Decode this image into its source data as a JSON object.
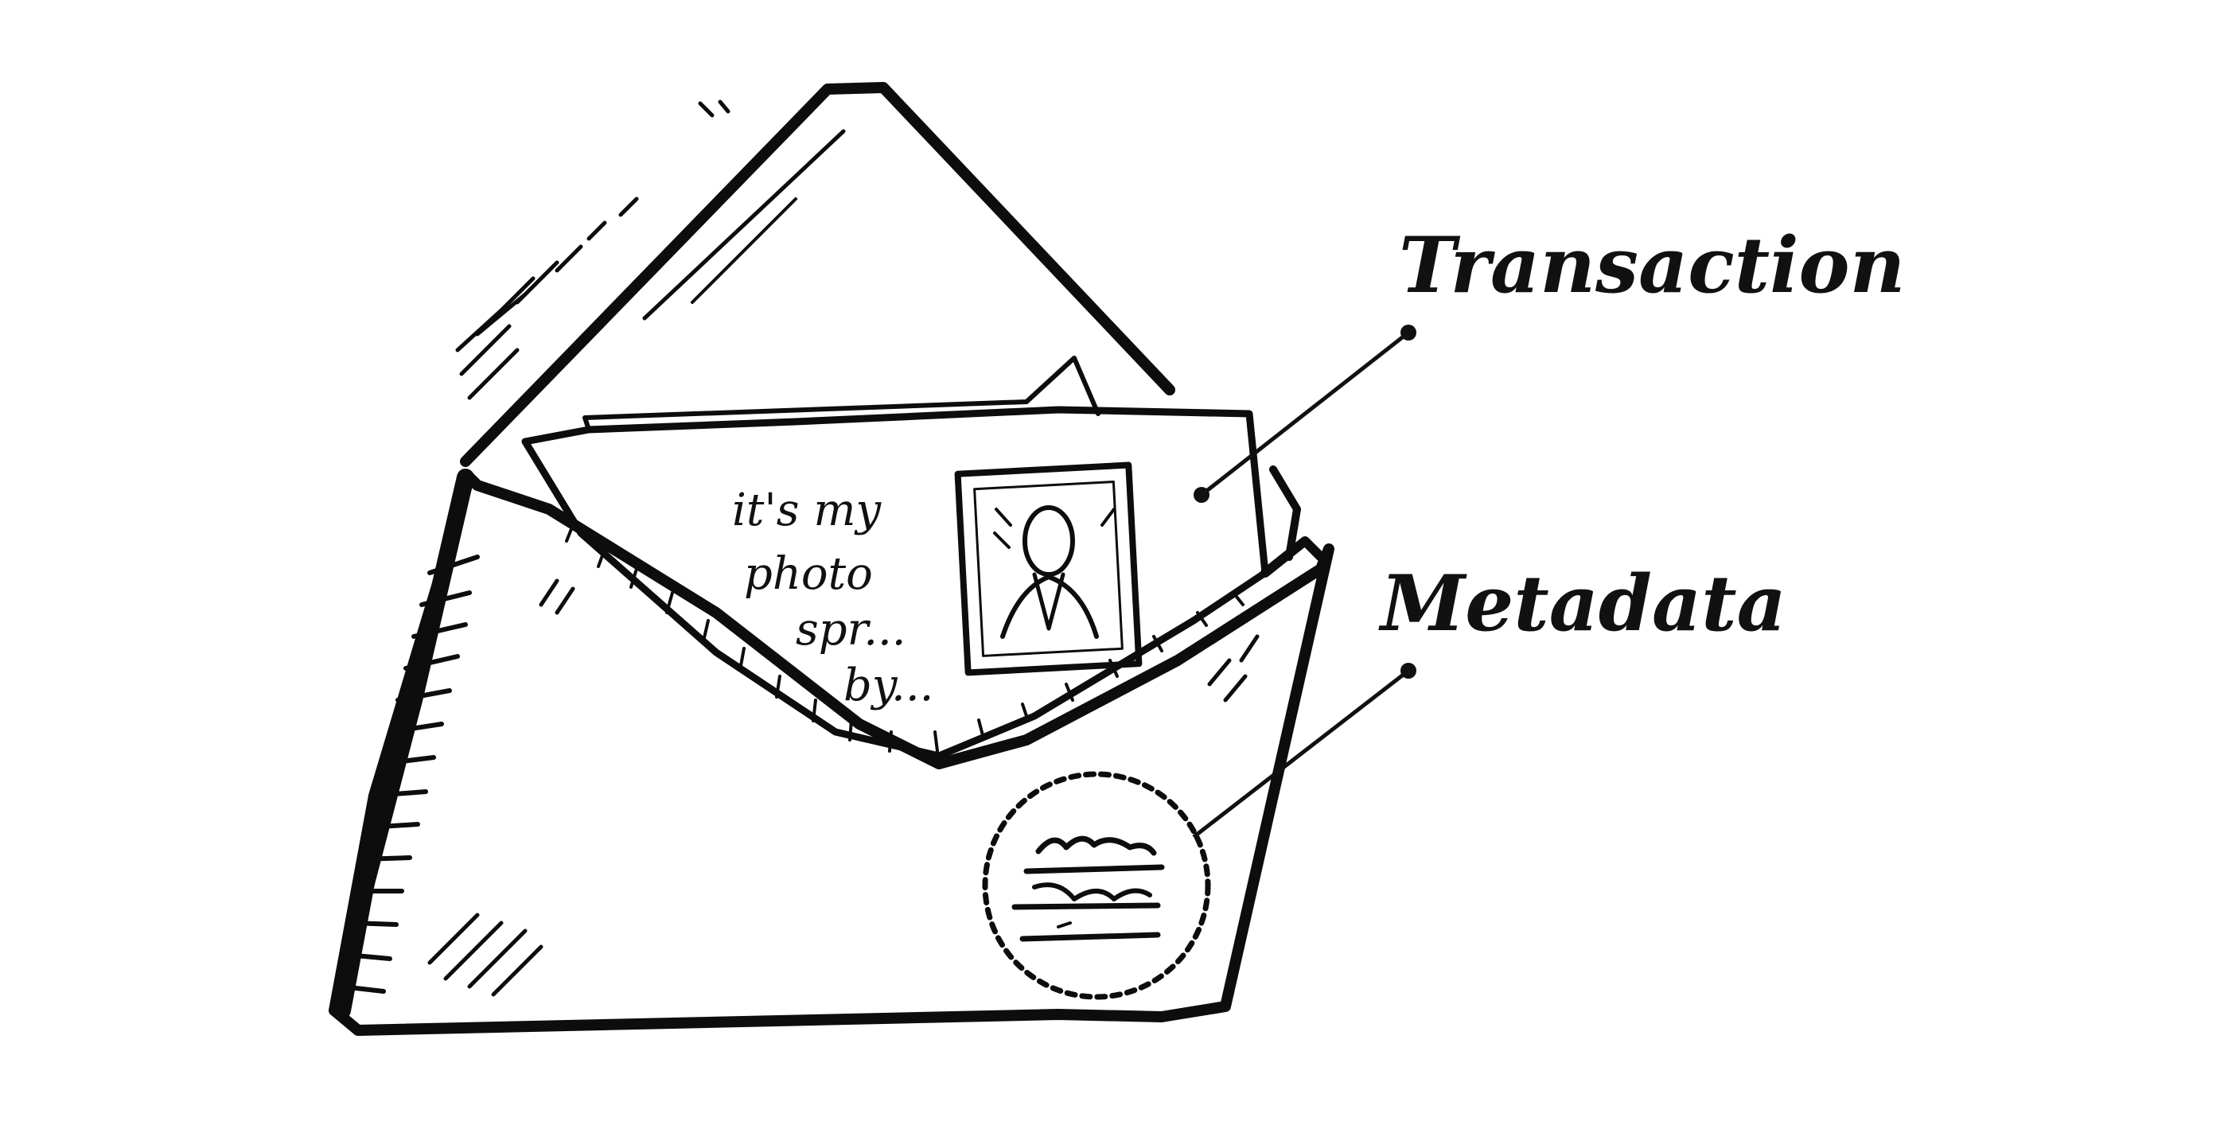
{
  "diagram": {
    "labels": {
      "transaction": "Transaction",
      "metadata": "Metadata"
    },
    "letter_handwriting": [
      "it's my",
      "photo",
      "spr...",
      "by..."
    ],
    "colors": {
      "ink": "#0d0d0d",
      "background": "#ffffff"
    },
    "icons": [
      "envelope-icon",
      "letter-icon",
      "portrait-photo-icon",
      "stamp-seal-icon"
    ]
  }
}
